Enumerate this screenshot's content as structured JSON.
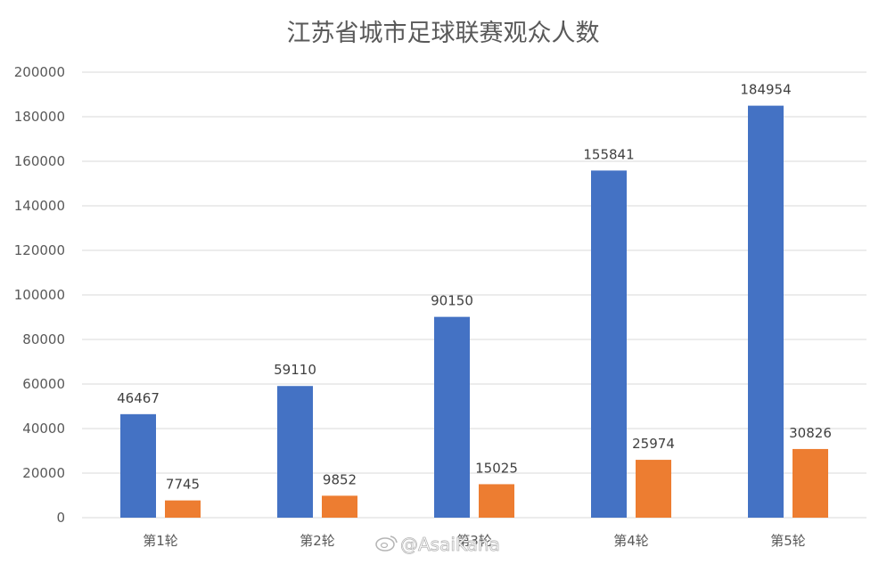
{
  "chart_data": {
    "type": "bar",
    "title": "江苏省城市足球联赛观众人数",
    "categories": [
      "第1轮",
      "第2轮",
      "第3轮",
      "第4轮",
      "第5轮"
    ],
    "series": [
      {
        "values": [
          46467,
          59110,
          90150,
          155841,
          184954
        ],
        "color": "#4472c4"
      },
      {
        "values": [
          7745,
          9852,
          15025,
          25974,
          30826
        ],
        "color": "#ed7d31"
      }
    ],
    "ylim": [
      0,
      200000
    ],
    "yticks": [
      0,
      20000,
      40000,
      60000,
      80000,
      100000,
      120000,
      140000,
      160000,
      180000,
      200000
    ],
    "grid": true,
    "xlabel": "",
    "ylabel": ""
  },
  "watermark": {
    "text": "@AsaiKana",
    "icon": "weibo-icon"
  }
}
